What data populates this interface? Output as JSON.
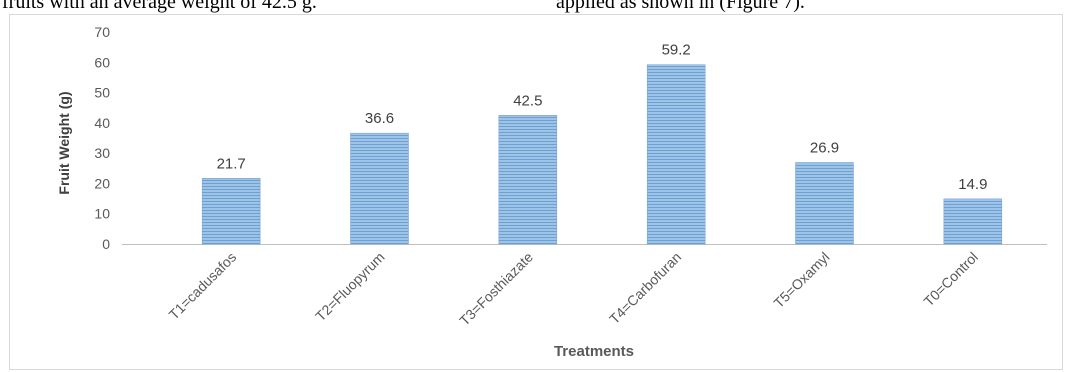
{
  "context_text": {
    "left": "fruits with an average weight of 42.5 g.",
    "right": "applied as shown in (Figure 7)."
  },
  "colors": {
    "bar_fill": "#9dc3e6",
    "bar_stripe": "#6fa0d2",
    "axis": "#bfbfbf",
    "tick_text": "#595959",
    "label_text": "#404040"
  },
  "chart_data": {
    "type": "bar",
    "title": "",
    "xlabel": "Treatments",
    "ylabel": "Fruit Weight (g)",
    "ylim": [
      0,
      70
    ],
    "yticks": [
      0,
      10,
      20,
      30,
      40,
      50,
      60,
      70
    ],
    "categories": [
      "T1=cadusafos",
      "T2=Fluopyrum",
      "T3=Fosthiazate",
      "T4=Carbofuran",
      "T5=Oxamyl",
      "T0=Control"
    ],
    "values": [
      21.7,
      36.6,
      42.5,
      59.2,
      26.9,
      14.9
    ],
    "data_labels": [
      "21.7",
      "36.6",
      "42.5",
      "59.2",
      "26.9",
      "14.9"
    ],
    "grid": false,
    "legend": "none"
  }
}
